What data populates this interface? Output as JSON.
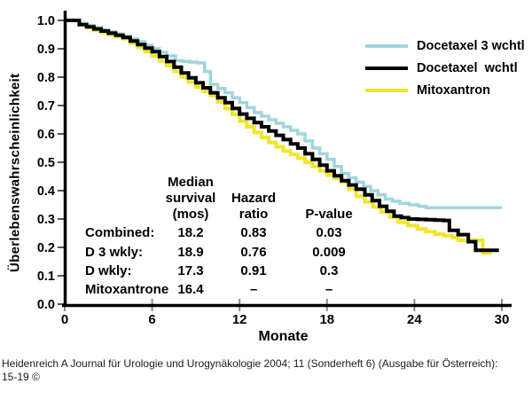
{
  "figure": {
    "background": "#ffffff",
    "axis_color": "#000000",
    "tick_color": "#8a8a8a"
  },
  "legend": {
    "items": [
      {
        "label": "Docetaxel 3 wchtl",
        "color": "#a0d6dc"
      },
      {
        "label": "Docetaxel  wchtl",
        "color": "#000000"
      },
      {
        "label": "Mitoxantron",
        "color": "#efe72e"
      }
    ]
  },
  "stats_table": {
    "header_median": "Median\nsurvival\n(mos)",
    "header_hazard": "Hazard\nratio",
    "header_p": "P-value",
    "rows": [
      {
        "label": "Combined:",
        "median": "18.2",
        "hazard": "0.83",
        "p": "0.03"
      },
      {
        "label": "D  3 wkly:",
        "median": "18.9",
        "hazard": "0.76",
        "p": "0.009"
      },
      {
        "label": "D  wkly:",
        "median": "17.3",
        "hazard": "0.91",
        "p": "0.3"
      },
      {
        "label": "Mitoxantrone",
        "median": "16.4",
        "hazard": "–",
        "p": "–"
      }
    ]
  },
  "citation": "Heidenreich A Journal für Urologie und Urogynäkologie 2004; 11 (Sonderheft 6) (Ausgabe für Österreich):\n15-19 ©",
  "chart_data": {
    "type": "line",
    "subtype": "kaplan-meier-step",
    "title": "",
    "xlabel": "Monate",
    "ylabel": "Überlebenswahrscheinlichkeit",
    "xlim": [
      0,
      30
    ],
    "ylim": [
      0.0,
      1.0
    ],
    "xticks": [
      0,
      6,
      12,
      18,
      24,
      30
    ],
    "yticks": [
      0.0,
      0.1,
      0.2,
      0.3,
      0.4,
      0.5,
      0.6,
      0.7,
      0.8,
      0.9,
      1.0
    ],
    "grid": false,
    "legend_position": "upper right",
    "series": [
      {
        "name": "Docetaxel 3 wchtl",
        "color": "#a0d6dc",
        "stroke_width": 3.5,
        "points": [
          [
            0,
            1.0
          ],
          [
            0.5,
            1.0
          ],
          [
            1,
            0.99
          ],
          [
            2,
            0.975
          ],
          [
            3,
            0.96
          ],
          [
            4,
            0.945
          ],
          [
            5,
            0.925
          ],
          [
            6,
            0.9
          ],
          [
            7,
            0.875
          ],
          [
            7.6,
            0.858
          ],
          [
            9.1,
            0.85
          ],
          [
            9.6,
            0.82
          ],
          [
            10,
            0.775
          ],
          [
            11,
            0.745
          ],
          [
            12,
            0.71
          ],
          [
            13,
            0.675
          ],
          [
            14,
            0.65
          ],
          [
            15,
            0.625
          ],
          [
            16,
            0.6
          ],
          [
            17,
            0.55
          ],
          [
            18,
            0.51
          ],
          [
            19,
            0.46
          ],
          [
            20,
            0.43
          ],
          [
            21,
            0.4
          ],
          [
            22,
            0.37
          ],
          [
            23,
            0.355
          ],
          [
            24.3,
            0.345
          ],
          [
            24.8,
            0.34
          ],
          [
            30,
            0.34
          ]
        ]
      },
      {
        "name": "Mitoxantron",
        "color": "#efe72e",
        "stroke_width": 4,
        "points": [
          [
            0,
            1.0
          ],
          [
            0.5,
            1.0
          ],
          [
            1,
            0.985
          ],
          [
            2,
            0.965
          ],
          [
            3,
            0.95
          ],
          [
            4,
            0.935
          ],
          [
            5,
            0.905
          ],
          [
            6,
            0.875
          ],
          [
            7,
            0.84
          ],
          [
            8,
            0.8
          ],
          [
            9,
            0.765
          ],
          [
            10,
            0.735
          ],
          [
            11,
            0.69
          ],
          [
            12,
            0.645
          ],
          [
            13,
            0.605
          ],
          [
            14,
            0.57
          ],
          [
            15,
            0.54
          ],
          [
            16,
            0.515
          ],
          [
            17,
            0.485
          ],
          [
            18,
            0.455
          ],
          [
            19,
            0.43
          ],
          [
            20,
            0.38
          ],
          [
            20.6,
            0.36
          ],
          [
            21.7,
            0.325
          ],
          [
            22.9,
            0.288
          ],
          [
            24.2,
            0.265
          ],
          [
            25.4,
            0.247
          ],
          [
            26.6,
            0.235
          ],
          [
            27,
            0.225
          ],
          [
            28.6,
            0.225
          ],
          [
            28.7,
            0.18
          ],
          [
            29.3,
            0.18
          ]
        ]
      },
      {
        "name": "Docetaxel wchtl",
        "color": "#000000",
        "stroke_width": 4,
        "points": [
          [
            0,
            1.0
          ],
          [
            0.5,
            1.0
          ],
          [
            1,
            0.985
          ],
          [
            2,
            0.97
          ],
          [
            3,
            0.955
          ],
          [
            4,
            0.94
          ],
          [
            5,
            0.915
          ],
          [
            6,
            0.89
          ],
          [
            7,
            0.855
          ],
          [
            8,
            0.815
          ],
          [
            9,
            0.78
          ],
          [
            10,
            0.745
          ],
          [
            11,
            0.71
          ],
          [
            12,
            0.67
          ],
          [
            13,
            0.64
          ],
          [
            14,
            0.61
          ],
          [
            15,
            0.58
          ],
          [
            16,
            0.55
          ],
          [
            17,
            0.51
          ],
          [
            18,
            0.47
          ],
          [
            19,
            0.435
          ],
          [
            20,
            0.405
          ],
          [
            20.6,
            0.385
          ],
          [
            21.6,
            0.345
          ],
          [
            22.6,
            0.31
          ],
          [
            23.6,
            0.3
          ],
          [
            26,
            0.295
          ],
          [
            26.4,
            0.26
          ],
          [
            27,
            0.245
          ],
          [
            27.7,
            0.22
          ],
          [
            28.2,
            0.19
          ],
          [
            29.8,
            0.19
          ]
        ]
      }
    ]
  }
}
